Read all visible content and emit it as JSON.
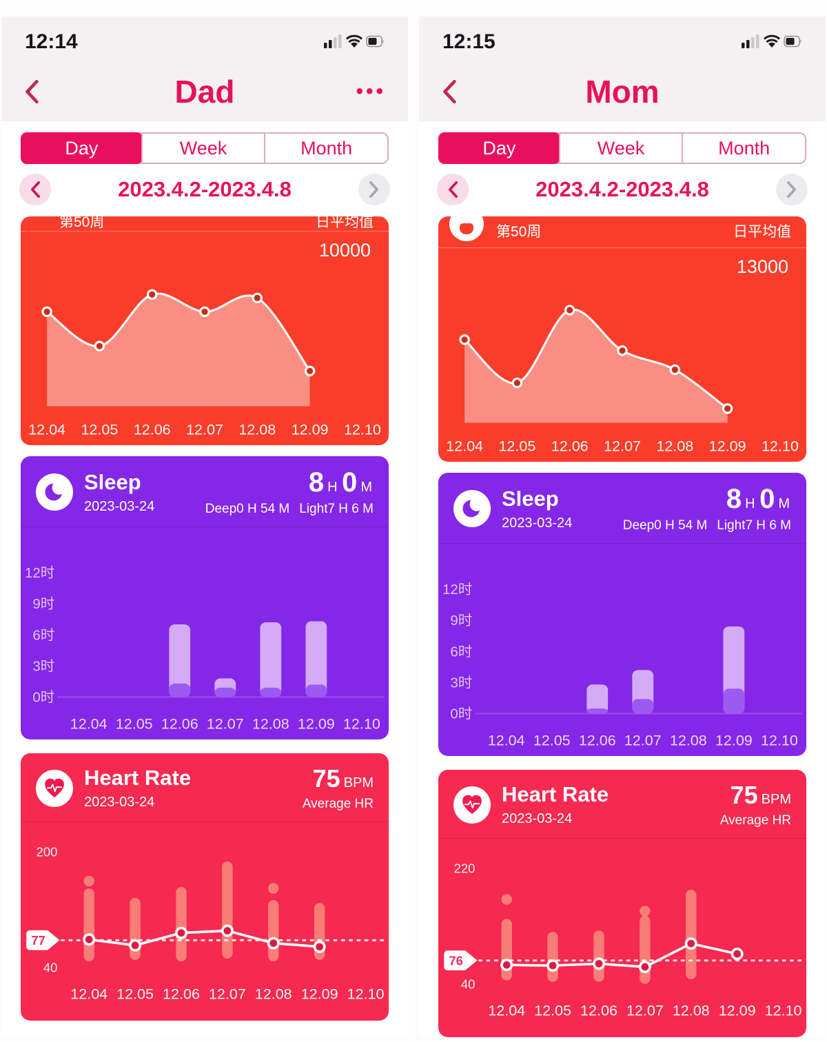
{
  "shared": {
    "x_labels": [
      "12.04",
      "12.05",
      "12.06",
      "12.07",
      "12.08",
      "12.09",
      "12.10"
    ]
  },
  "panels": [
    {
      "status_time": "12:14",
      "title": "Dad",
      "more": "•••",
      "tabs": {
        "day": "Day",
        "week": "Week",
        "month": "Month"
      },
      "date_range": "2023.4.2-2023.4.8",
      "steps": {
        "week_label": "第50周",
        "avg_label": "日平均值",
        "avg_value": "10000",
        "chart": {
          "type": "area",
          "max": 14000,
          "values": [
            11000,
            7000,
            13000,
            11000,
            12600,
            4100,
            null
          ]
        }
      },
      "sleep": {
        "title": "Sleep",
        "date": "2023-03-24",
        "hours": "8",
        "hours_unit": "H",
        "minutes": "0",
        "minutes_unit": "M",
        "deep": "Deep0 H 54 M",
        "light": "Light7 H 6 M",
        "chart": {
          "type": "stacked-bar",
          "y_labels": [
            "12时",
            "9时",
            "6时",
            "3时",
            "0时"
          ],
          "bars": [
            null,
            null,
            [
              7.0,
              1.3
            ],
            [
              1.8,
              0.9
            ],
            [
              7.2,
              0.9
            ],
            [
              7.3,
              1.2
            ],
            null
          ]
        }
      },
      "heart_rate": {
        "title": "Heart Rate",
        "date": "2023-03-24",
        "bpm": "75",
        "bpm_unit": "BPM",
        "avg_label": "Average HR",
        "chart": {
          "type": "range-line",
          "ymin": 40,
          "ymax": 200,
          "y_top_label": "200",
          "y_bottom_label": "40",
          "avg_marker": 77,
          "points": [
            78,
            70,
            87,
            90,
            73,
            68,
            null
          ],
          "ranges": [
            [
              48,
              148
            ],
            [
              50,
              135
            ],
            [
              48,
              150
            ],
            [
              52,
              185
            ],
            [
              48,
              132
            ],
            [
              50,
              128
            ],
            null
          ],
          "dots": [
            158,
            null,
            null,
            null,
            148,
            null,
            null
          ]
        }
      }
    },
    {
      "status_time": "12:15",
      "title": "Mom",
      "more": "",
      "tabs": {
        "day": "Day",
        "week": "Week",
        "month": "Month"
      },
      "date_range": "2023.4.2-2023.4.8",
      "steps": {
        "week_label": "第50周",
        "avg_label": "日平均值",
        "avg_value": "13000",
        "chart": {
          "type": "area",
          "max": 22000,
          "values": [
            15200,
            7300,
            20600,
            13200,
            9700,
            2600,
            null
          ]
        }
      },
      "sleep": {
        "title": "Sleep",
        "date": "2023-03-24",
        "hours": "8",
        "hours_unit": "H",
        "minutes": "0",
        "minutes_unit": "M",
        "deep": "Deep0 H 54 M",
        "light": "Light7 H 6 M",
        "chart": {
          "type": "stacked-bar",
          "y_labels": [
            "12时",
            "9时",
            "6时",
            "3时",
            "0时"
          ],
          "bars": [
            null,
            null,
            [
              2.8,
              0.5
            ],
            [
              4.2,
              1.4
            ],
            null,
            [
              8.4,
              2.4
            ],
            null
          ]
        }
      },
      "heart_rate": {
        "title": "Heart Rate",
        "date": "2023-03-24",
        "bpm": "75",
        "bpm_unit": "BPM",
        "avg_label": "Average HR",
        "chart": {
          "type": "range-line",
          "ymin": 40,
          "ymax": 220,
          "y_top_label": "220",
          "y_bottom_label": "40",
          "avg_marker": 76,
          "points": [
            69,
            68,
            71,
            66,
            102,
            86,
            null
          ],
          "ranges": [
            [
              45,
              140
            ],
            [
              43,
              120
            ],
            [
              43,
              122
            ],
            [
              40,
              145
            ],
            [
              47,
              185
            ],
            [
              80,
              96
            ],
            null
          ],
          "dots": [
            170,
            null,
            null,
            152,
            null,
            null,
            null
          ]
        }
      }
    }
  ]
}
